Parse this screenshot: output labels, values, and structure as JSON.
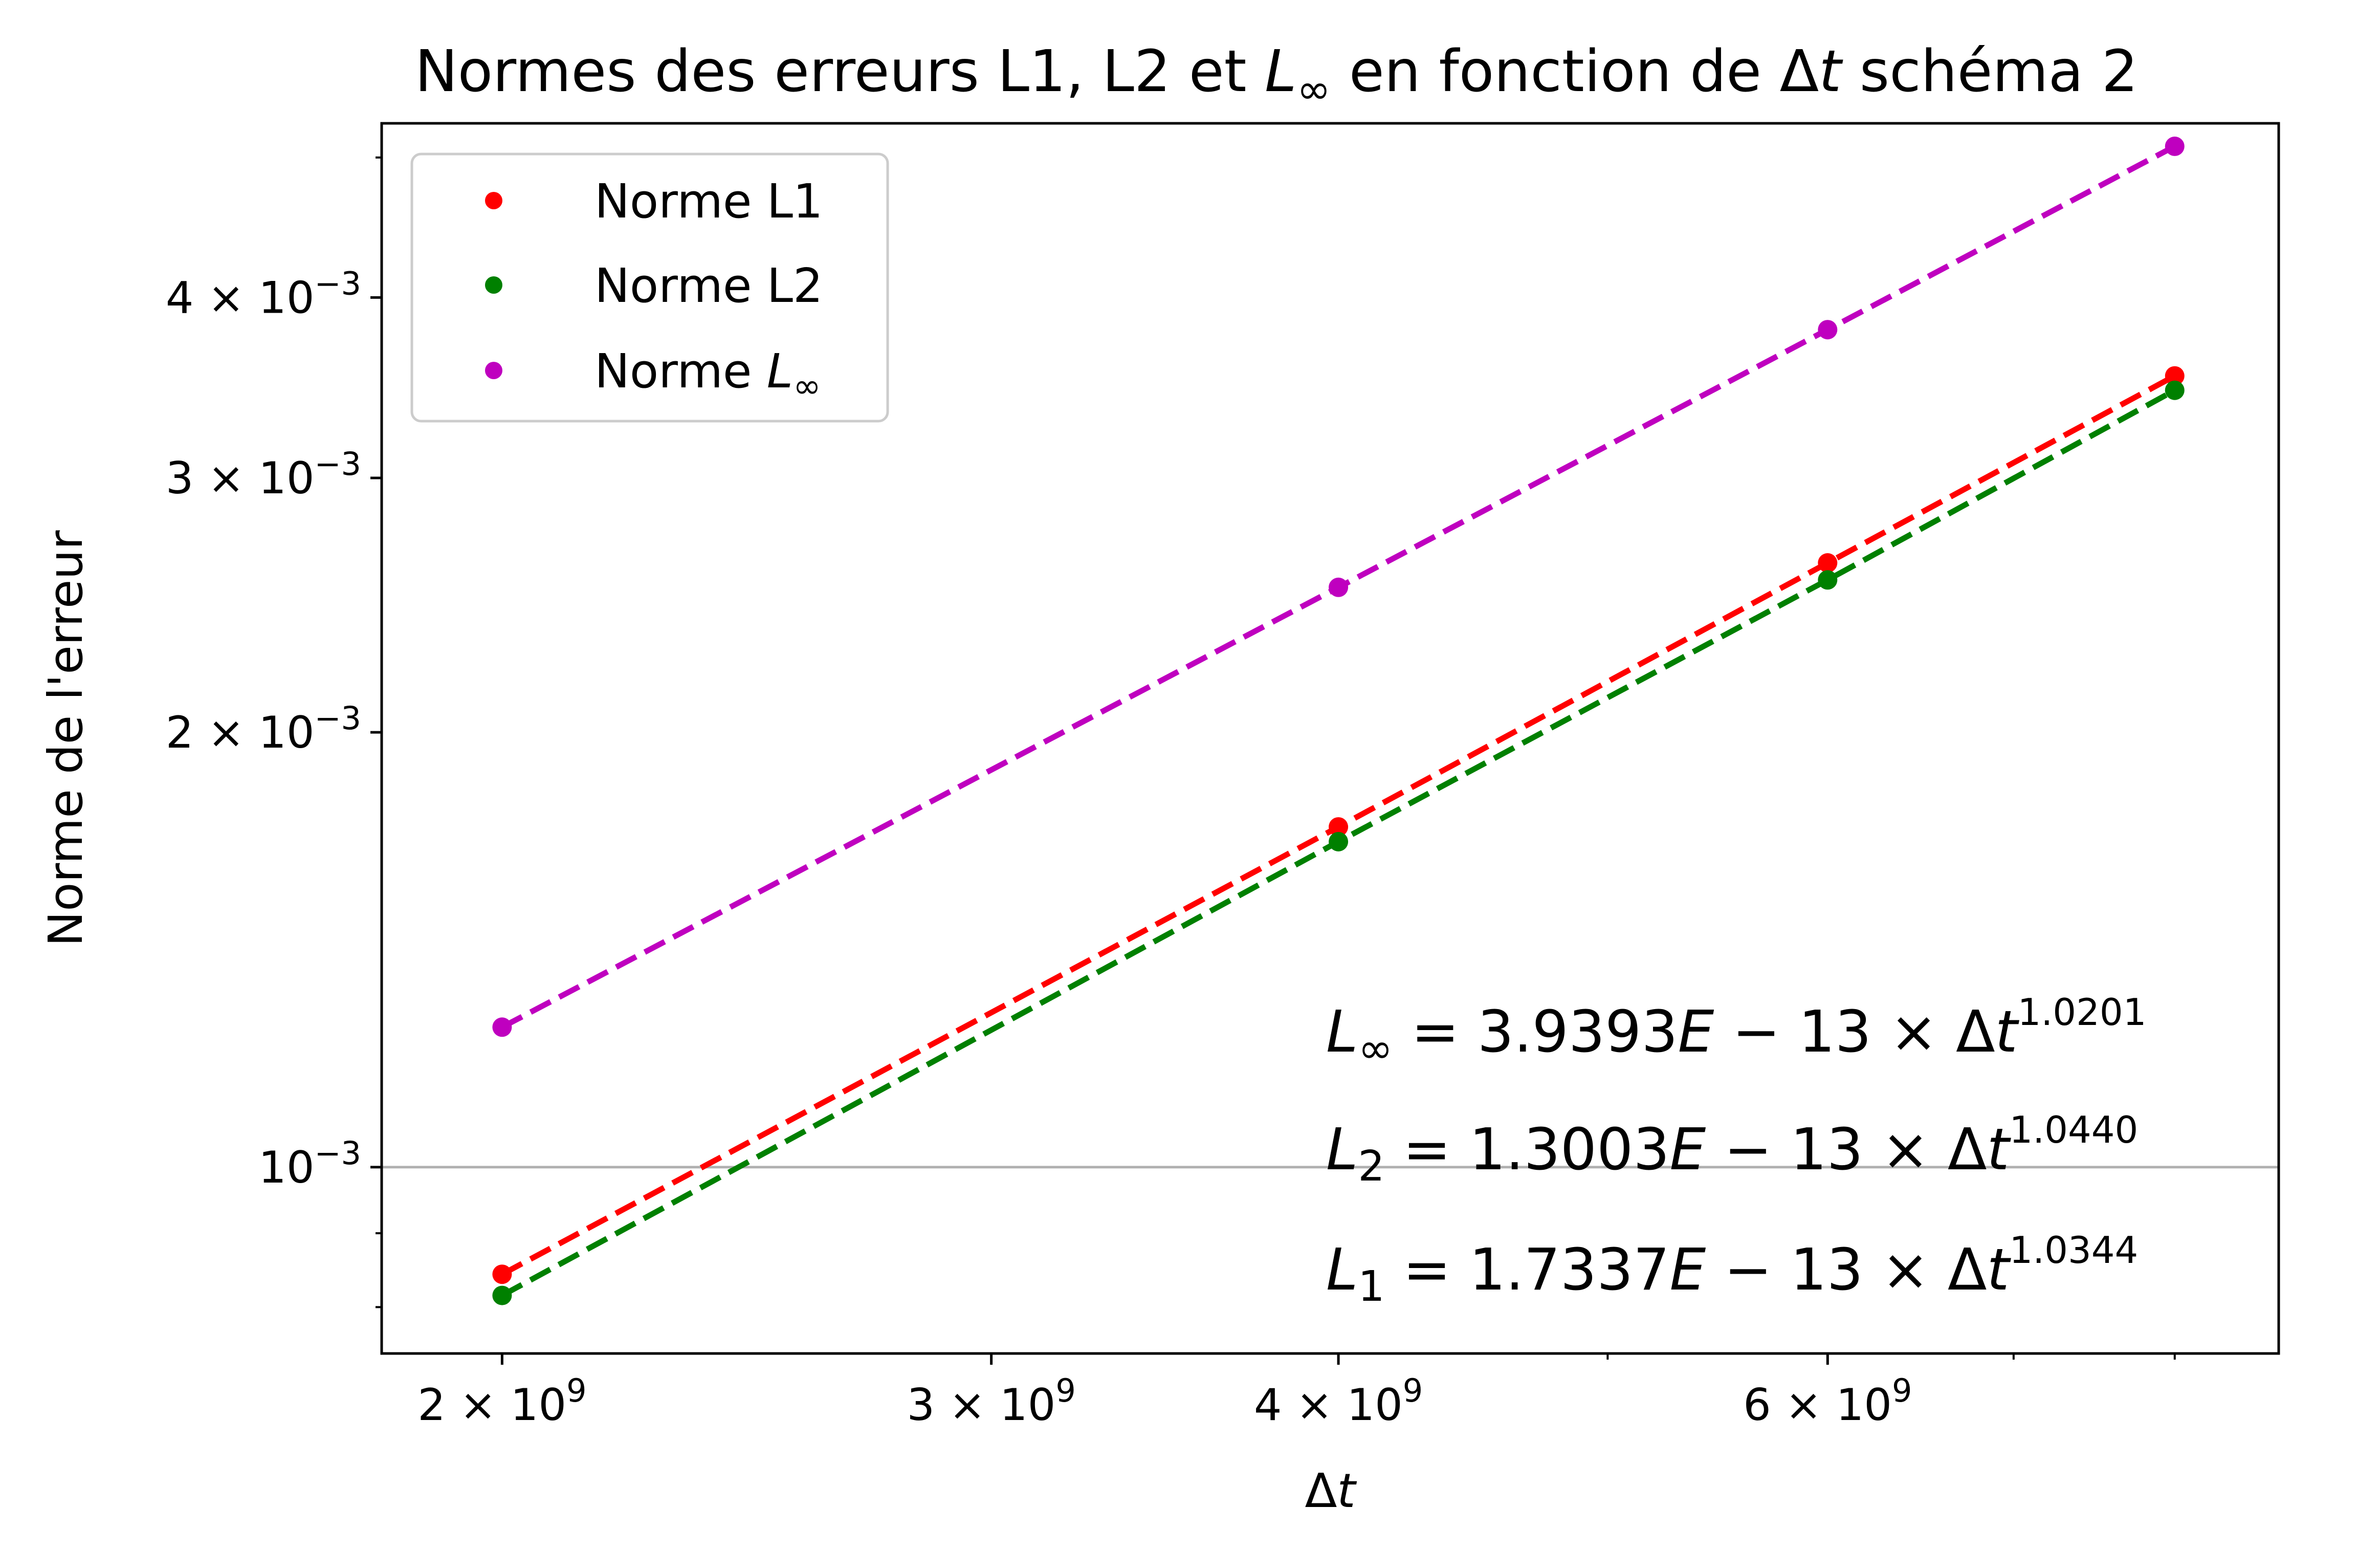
{
  "chart_data": {
    "type": "line",
    "title_parts": [
      "Normes des erreurs L1, L2 et ",
      "L",
      "∞",
      " en fonction de Δ",
      "t",
      " schéma 2"
    ],
    "xlabel_parts": [
      "Δ",
      "t"
    ],
    "ylabel": "Norme de l'erreur",
    "xscale": "log",
    "yscale": "log",
    "xlim": [
      1810000000.0,
      8720000000.0
    ],
    "ylim": [
      0.000743,
      0.00528
    ],
    "x": [
      2000000000,
      4000000000,
      6000000000,
      8000000000
    ],
    "x_ticks": [
      {
        "value": 2000000000,
        "mant": "2",
        "exp": "9"
      },
      {
        "value": 3000000000,
        "mant": "3",
        "exp": "9"
      },
      {
        "value": 4000000000,
        "mant": "4",
        "exp": "9"
      },
      {
        "value": 6000000000,
        "mant": "6",
        "exp": "9"
      }
    ],
    "x_minor_ticks": [
      5000000000,
      7000000000,
      8000000000
    ],
    "y_ticks": [
      {
        "value": 0.001,
        "mant": "",
        "exp": "−3"
      },
      {
        "value": 0.002,
        "mant": "2",
        "exp": "−3"
      },
      {
        "value": 0.003,
        "mant": "3",
        "exp": "−3"
      },
      {
        "value": 0.004,
        "mant": "4",
        "exp": "−3"
      }
    ],
    "y_minor_ticks": [
      0.0008,
      0.0009,
      0.005
    ],
    "hline": 0.001,
    "series": [
      {
        "name": "Norme L1",
        "color": "#ff0000",
        "values": [
          0.000843,
          0.00172,
          0.00262,
          0.00353
        ]
      },
      {
        "name": "Norme L2",
        "color": "#008000",
        "values": [
          0.000815,
          0.00168,
          0.00255,
          0.00345
        ]
      },
      {
        "name_parts": [
          "Norme ",
          "L",
          "∞"
        ],
        "color": "#bf00bf",
        "values": [
          0.00125,
          0.00252,
          0.0038,
          0.00509
        ]
      }
    ],
    "legend_position": "upper-left",
    "annotations": [
      {
        "sym": "L",
        "sub": "∞",
        "rest": " = 3.9393",
        "e": "E",
        "mid": " − 13 × Δ",
        "t": "t",
        "exp": "1.0201"
      },
      {
        "sym": "L",
        "sub": "2",
        "rest": " = 1.3003",
        "e": "E",
        "mid": " − 13 × Δ",
        "t": "t",
        "exp": "1.0440"
      },
      {
        "sym": "L",
        "sub": "1",
        "rest": " = 1.7337",
        "e": "E",
        "mid": " − 13 × Δ",
        "t": "t",
        "exp": "1.0344"
      }
    ],
    "grid": false
  }
}
